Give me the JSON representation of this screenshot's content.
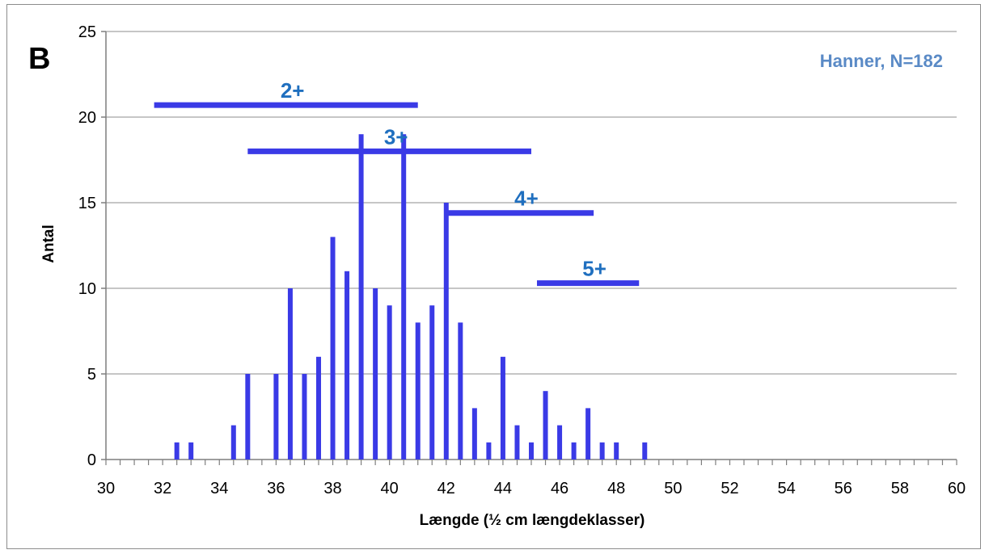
{
  "panel_label": "B",
  "annotation": "Hanner, N=182",
  "colors": {
    "bar": "#3A3AE6",
    "annotation": "#5A8AC6",
    "age_label": "#1F6FBF",
    "grid": "#8c8c8c",
    "axis": "#7f7f7f"
  },
  "chart_data": {
    "type": "bar",
    "xlabel": "Længde (½ cm længdeklasser)",
    "ylabel": "Antal",
    "xlim": [
      30,
      60
    ],
    "ylim": [
      0,
      25
    ],
    "x_ticks": [
      "30",
      "32",
      "34",
      "36",
      "38",
      "40",
      "42",
      "44",
      "46",
      "48",
      "50",
      "52",
      "54",
      "56",
      "58",
      "60"
    ],
    "y_ticks": [
      "0",
      "5",
      "10",
      "15",
      "20",
      "25"
    ],
    "grid": true,
    "bars": [
      {
        "x": 32.5,
        "value": 1
      },
      {
        "x": 33.0,
        "value": 1
      },
      {
        "x": 34.5,
        "value": 2
      },
      {
        "x": 35.0,
        "value": 5
      },
      {
        "x": 36.0,
        "value": 5
      },
      {
        "x": 36.5,
        "value": 10
      },
      {
        "x": 37.0,
        "value": 5
      },
      {
        "x": 37.5,
        "value": 6
      },
      {
        "x": 38.0,
        "value": 13
      },
      {
        "x": 38.5,
        "value": 11
      },
      {
        "x": 39.0,
        "value": 19
      },
      {
        "x": 39.5,
        "value": 10
      },
      {
        "x": 40.0,
        "value": 9
      },
      {
        "x": 40.5,
        "value": 19
      },
      {
        "x": 41.0,
        "value": 8
      },
      {
        "x": 41.5,
        "value": 9
      },
      {
        "x": 42.0,
        "value": 15
      },
      {
        "x": 42.5,
        "value": 8
      },
      {
        "x": 43.0,
        "value": 3
      },
      {
        "x": 43.5,
        "value": 1
      },
      {
        "x": 44.0,
        "value": 6
      },
      {
        "x": 44.5,
        "value": 2
      },
      {
        "x": 45.0,
        "value": 1
      },
      {
        "x": 45.5,
        "value": 4
      },
      {
        "x": 46.0,
        "value": 2
      },
      {
        "x": 46.5,
        "value": 1
      },
      {
        "x": 47.0,
        "value": 3
      },
      {
        "x": 47.5,
        "value": 1
      },
      {
        "x": 48.0,
        "value": 1
      },
      {
        "x": 49.0,
        "value": 1
      }
    ],
    "age_ranges": [
      {
        "label": "2+",
        "x_start": 31.7,
        "x_end": 41.0,
        "y": 20.7
      },
      {
        "label": "3+",
        "x_start": 35.0,
        "x_end": 45.0,
        "y": 18.0
      },
      {
        "label": "4+",
        "x_start": 42.0,
        "x_end": 47.2,
        "y": 14.4
      },
      {
        "label": "5+",
        "x_start": 45.2,
        "x_end": 48.8,
        "y": 10.3
      }
    ]
  }
}
